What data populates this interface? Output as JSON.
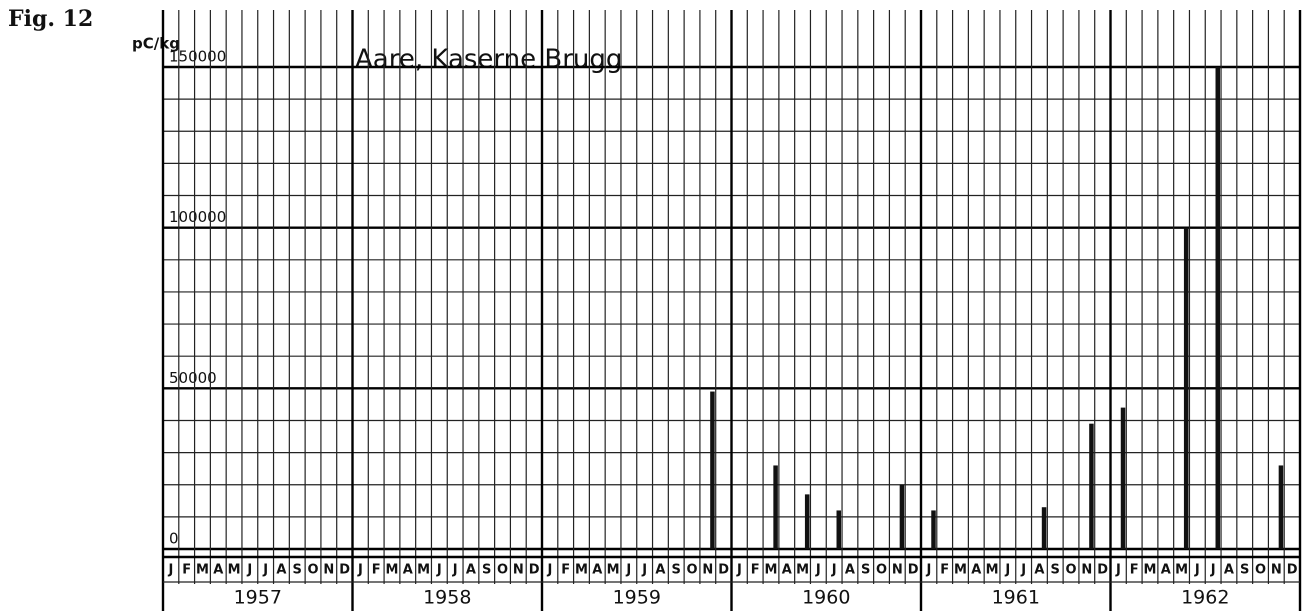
{
  "chart_data": {
    "type": "bar",
    "figure": "Fig. 12",
    "title": "Aare, Kaserne Brugg",
    "y_label": "pC/kg",
    "categories": [
      "J",
      "F",
      "M",
      "A",
      "M",
      "J",
      "J",
      "A",
      "S",
      "O",
      "N",
      "D",
      "J",
      "F",
      "M",
      "A",
      "M",
      "J",
      "J",
      "A",
      "S",
      "O",
      "N",
      "D",
      "J",
      "F",
      "M",
      "A",
      "M",
      "J",
      "J",
      "A",
      "S",
      "O",
      "N",
      "D",
      "J",
      "F",
      "M",
      "A",
      "M",
      "J",
      "J",
      "A",
      "S",
      "O",
      "N",
      "D",
      "J",
      "F",
      "M",
      "A",
      "M",
      "J",
      "J",
      "A",
      "S",
      "O",
      "N",
      "D",
      "J",
      "F",
      "M",
      "A",
      "M",
      "J",
      "J",
      "A",
      "S",
      "O",
      "N",
      "D"
    ],
    "years": [
      "1957",
      "1958",
      "1959",
      "1960",
      "1961",
      "1962"
    ],
    "values": [
      null,
      null,
      null,
      null,
      null,
      null,
      null,
      null,
      null,
      null,
      null,
      null,
      null,
      null,
      null,
      null,
      null,
      null,
      null,
      null,
      null,
      null,
      null,
      null,
      null,
      null,
      null,
      null,
      null,
      null,
      null,
      null,
      null,
      null,
      49000,
      null,
      null,
      null,
      26000,
      null,
      17000,
      null,
      12000,
      null,
      null,
      null,
      20000,
      null,
      12000,
      null,
      null,
      null,
      null,
      null,
      null,
      13000,
      null,
      null,
      39000,
      null,
      44000,
      null,
      null,
      null,
      100000,
      null,
      150000,
      null,
      null,
      null,
      26000,
      null
    ],
    "color": "#111111",
    "ylim": [
      0,
      150000
    ],
    "yticks": [
      0,
      50000,
      100000,
      150000
    ],
    "minor_yticks": [
      10000,
      20000,
      30000,
      40000,
      60000,
      70000,
      80000,
      90000,
      110000,
      120000,
      130000,
      140000
    ],
    "grid": true
  }
}
